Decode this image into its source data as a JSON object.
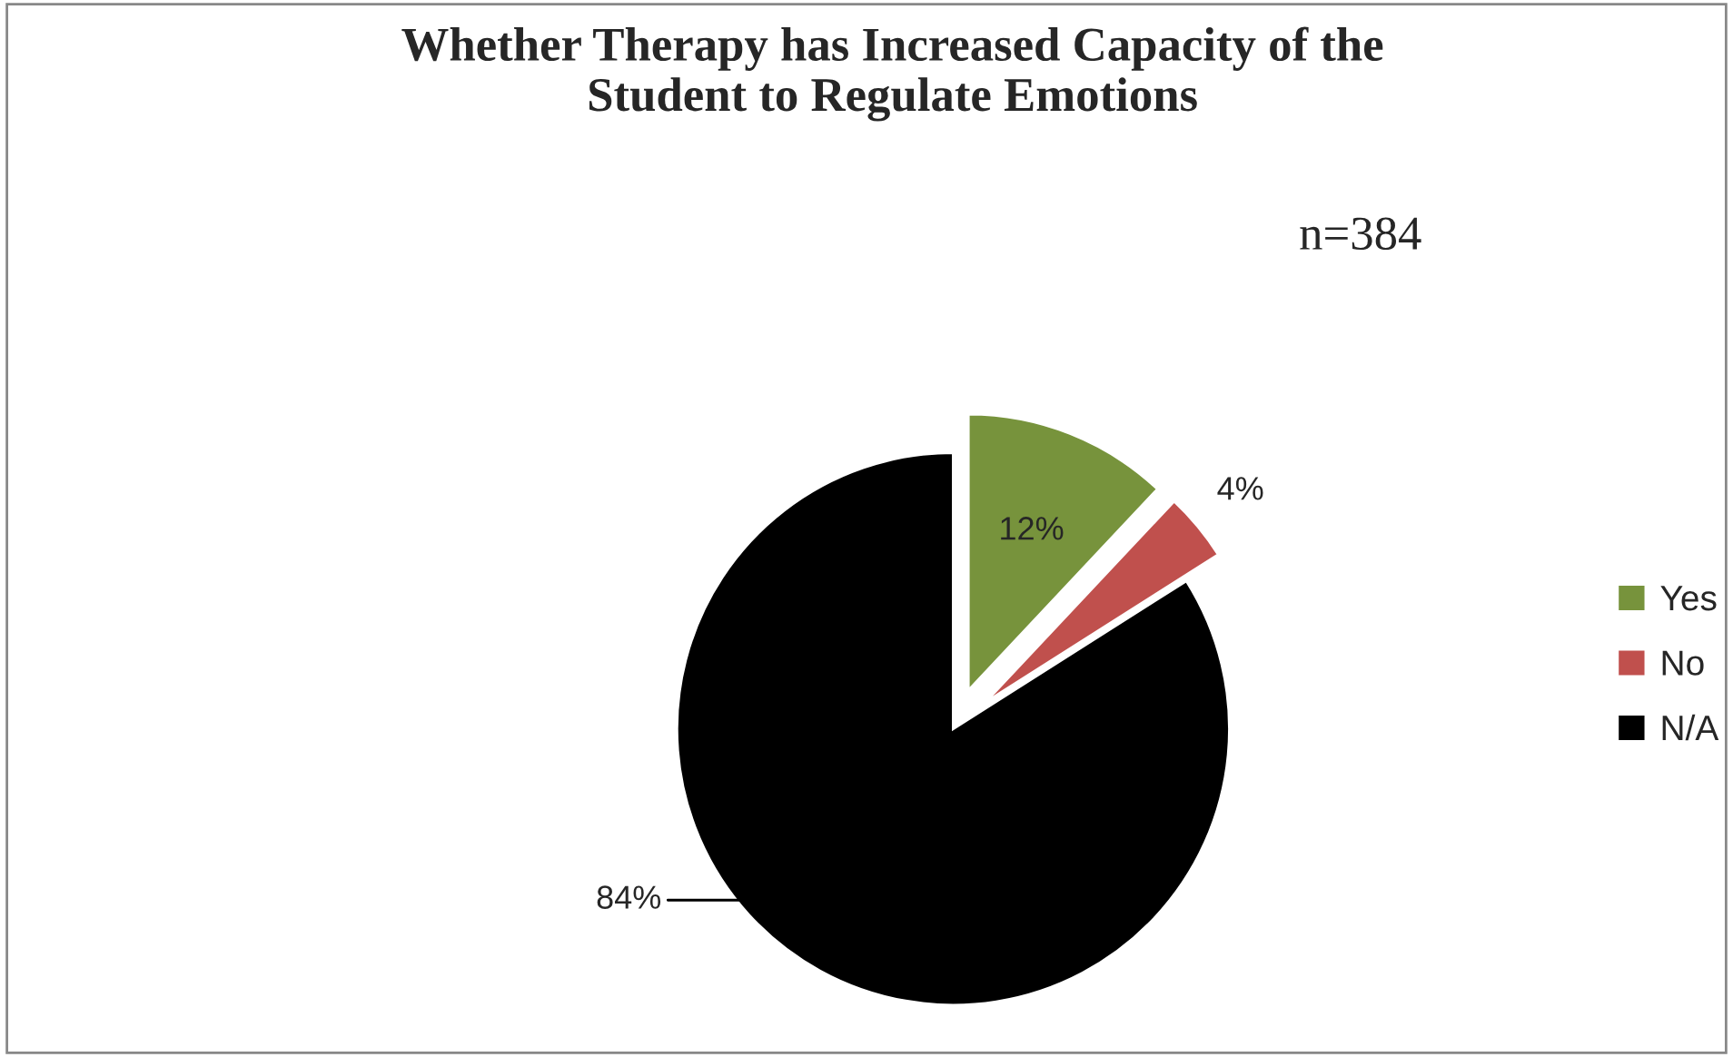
{
  "chart_data": {
    "type": "pie",
    "title": "Whether Therapy has Increased Capacity of the\nStudent to Regulate Emotions",
    "categories": [
      "Yes",
      "No",
      "N/A"
    ],
    "values": [
      12,
      4,
      84
    ],
    "colors": [
      "#77933c",
      "#c0504d",
      "#000000"
    ],
    "value_labels": [
      "12%",
      "4%",
      "84%"
    ],
    "annotations": [
      "n=384"
    ],
    "legend": "right"
  }
}
